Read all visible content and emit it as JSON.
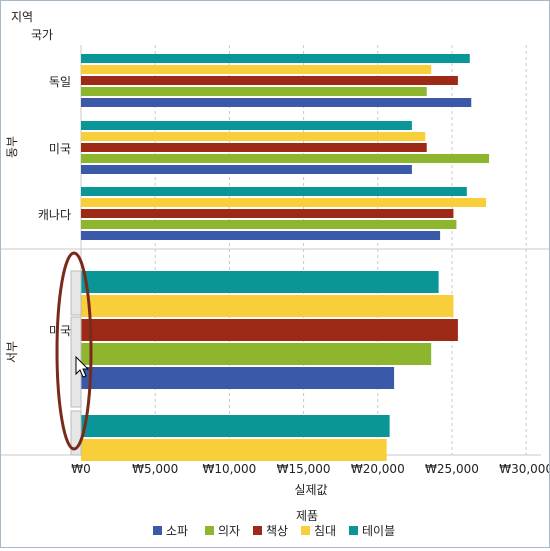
{
  "chart_data": {
    "type": "bar",
    "orientation": "horizontal",
    "header": {
      "region_label": "지역",
      "country_label": "국가"
    },
    "xlabel": "실제값",
    "xlim": [
      0,
      31000
    ],
    "xticks": [
      0,
      5000,
      10000,
      15000,
      20000,
      25000,
      30000
    ],
    "xtick_labels": [
      "₩0",
      "₩5,000",
      "₩10,000",
      "₩15,000",
      "₩20,000",
      "₩25,000",
      "₩30,000"
    ],
    "grid": "vertical-dashed",
    "legend": {
      "title": "제품",
      "placement": "bottom",
      "items": [
        {
          "name": "소파",
          "color": "#3a59a8"
        },
        {
          "name": "의자",
          "color": "#8db52e"
        },
        {
          "name": "책상",
          "color": "#9d2a16"
        },
        {
          "name": "침대",
          "color": "#f8ce3b"
        },
        {
          "name": "테이블",
          "color": "#0a9696"
        }
      ]
    },
    "panels": [
      {
        "region": "동부",
        "groups": [
          {
            "country": "독일",
            "values": {
              "테이블": 26200,
              "침대": 23600,
              "책상": 25400,
              "의자": 23300,
              "소파": 26300
            }
          },
          {
            "country": "미국",
            "values": {
              "테이블": 22300,
              "침대": 23200,
              "책상": 23300,
              "의자": 27500,
              "소파": 22300
            }
          },
          {
            "country": "캐나다",
            "values": {
              "테이블": 26000,
              "침대": 27300,
              "책상": 25100,
              "의자": 25300,
              "소파": 24200
            }
          }
        ]
      },
      {
        "region": "서부",
        "groups": [
          {
            "country": "미국",
            "values": {
              "테이블": 24100,
              "침대": 25100,
              "책상": 25400,
              "의자": 23600,
              "소파": 21100
            }
          },
          {
            "country": "",
            "partial": true,
            "values": {
              "테이블": 20800,
              "침대": 20600
            }
          }
        ]
      }
    ]
  },
  "annotation": {
    "color": "#7a2a1a"
  }
}
